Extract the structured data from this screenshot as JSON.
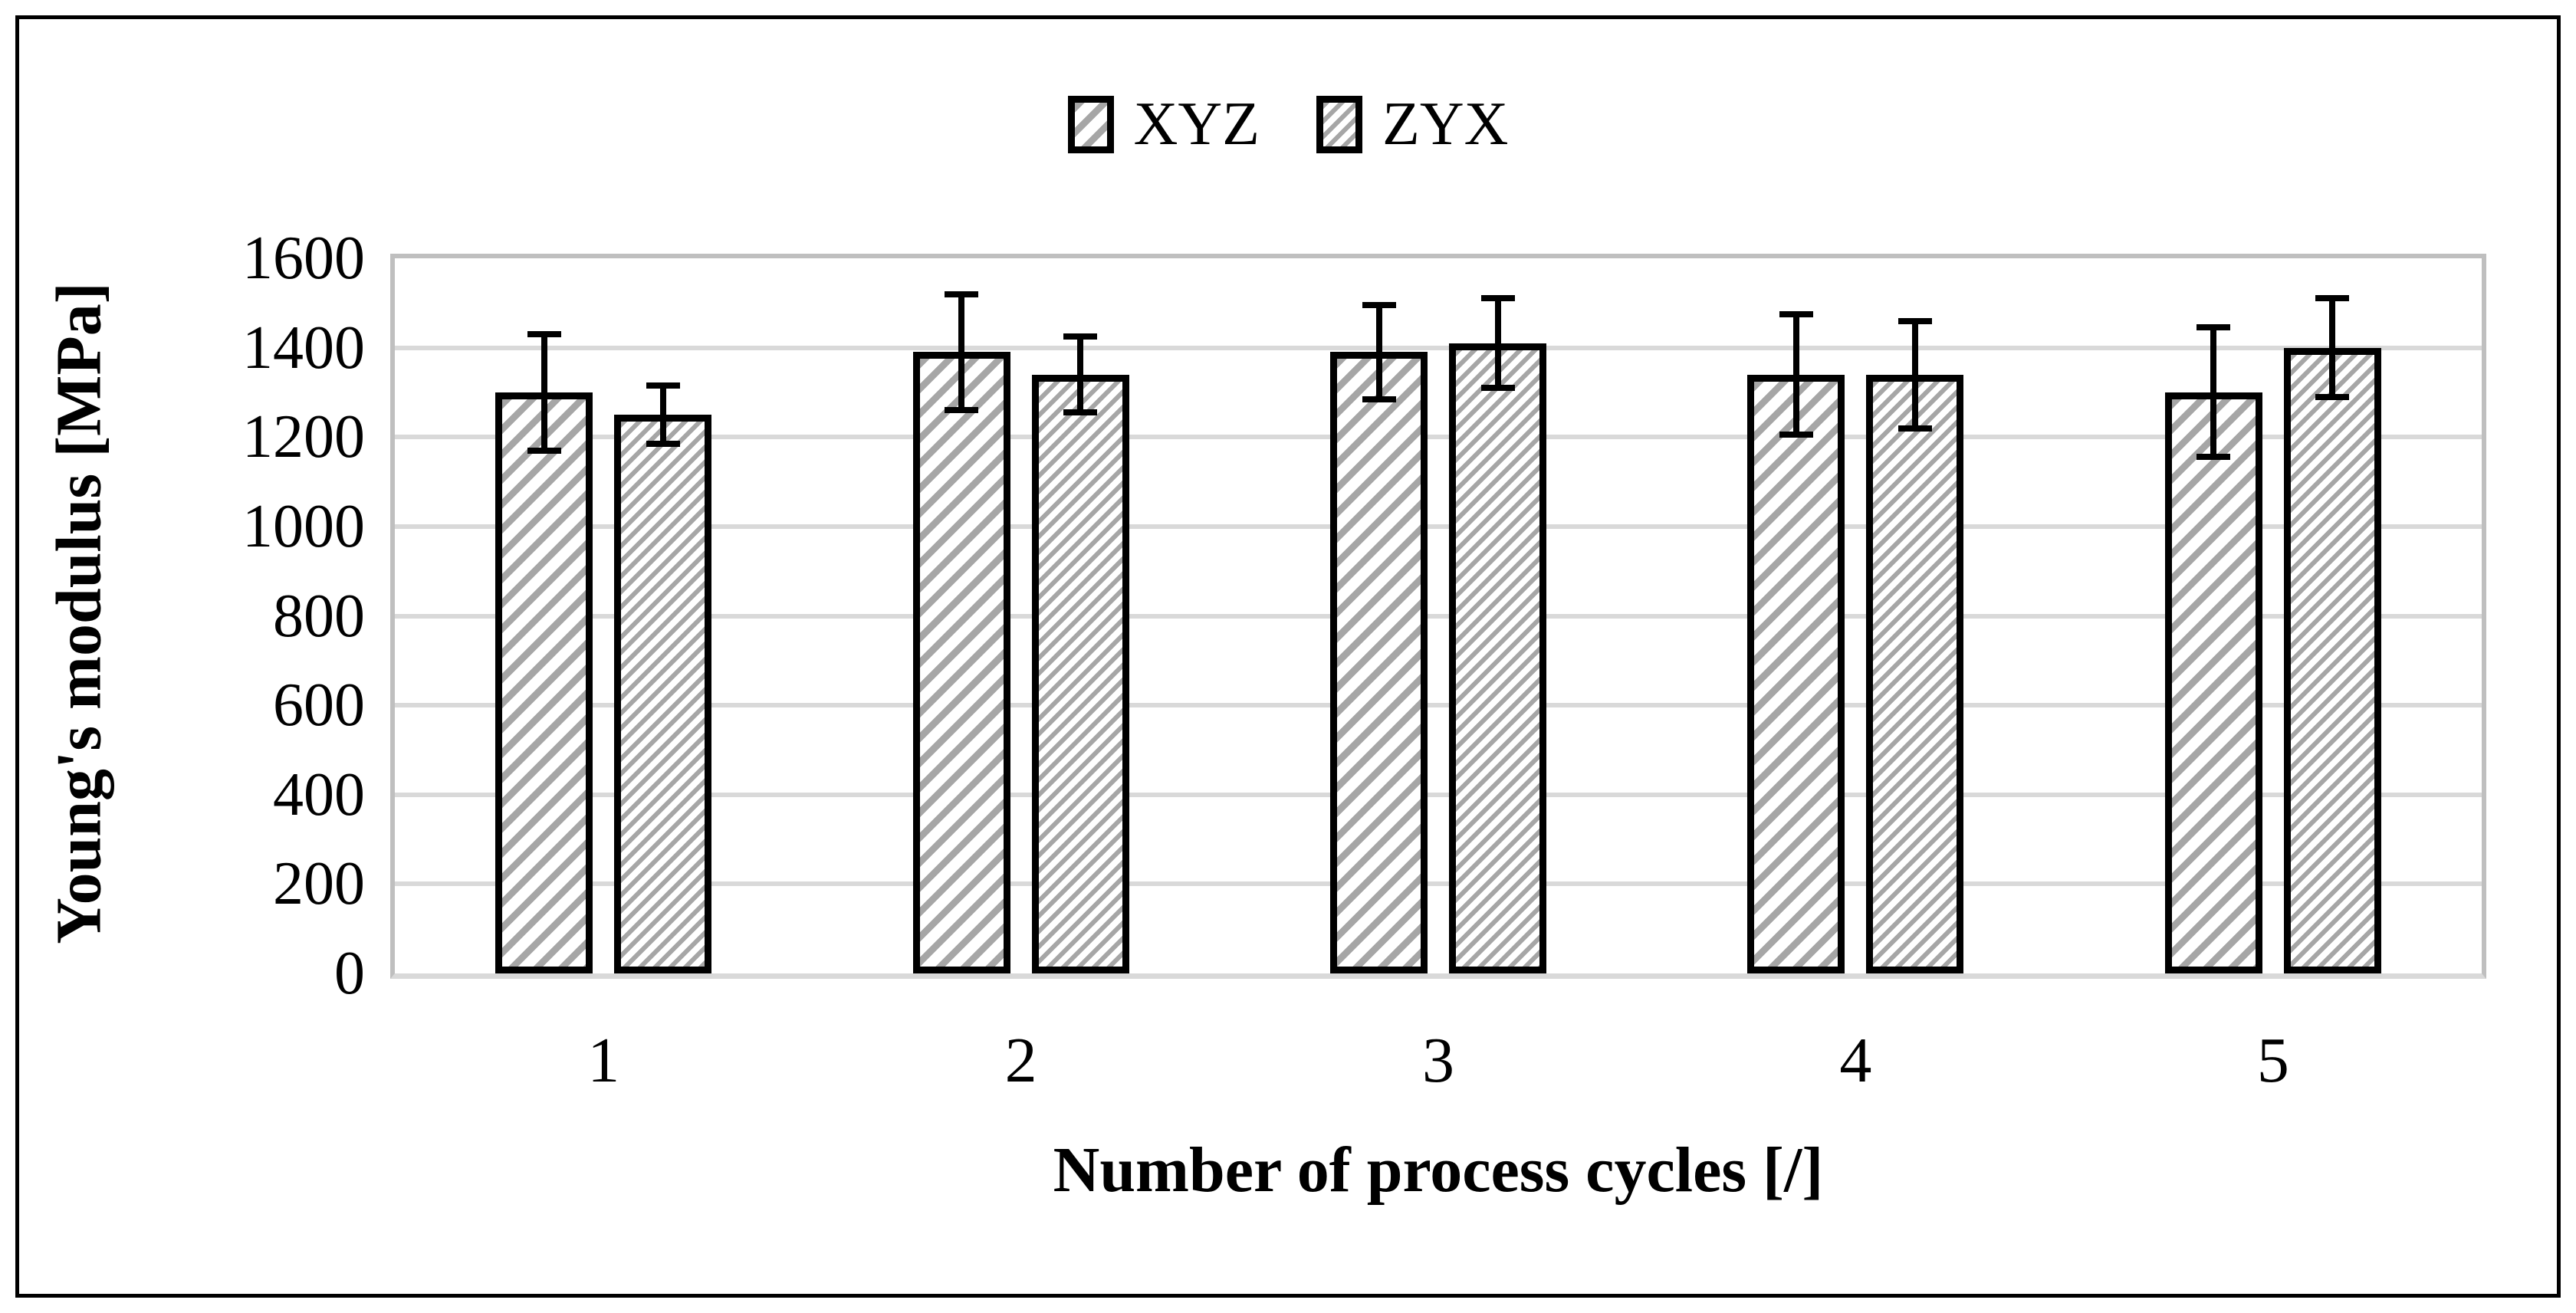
{
  "chart_data": {
    "type": "bar",
    "title": "",
    "categories": [
      "1",
      "2",
      "3",
      "4",
      "5"
    ],
    "series": [
      {
        "name": "XYZ",
        "values": [
          1300,
          1390,
          1390,
          1340,
          1300
        ],
        "errors": [
          130,
          130,
          105,
          135,
          145
        ],
        "hatch": "wide-diagonal"
      },
      {
        "name": "ZYX",
        "values": [
          1250,
          1340,
          1410,
          1340,
          1400
        ],
        "errors": [
          65,
          85,
          100,
          120,
          110
        ],
        "hatch": "fine-diagonal"
      }
    ],
    "xlabel": "Number of process cycles [/]",
    "ylabel": "Young's modulus [MPa]",
    "ylim": [
      0,
      1600
    ],
    "yticks": [
      0,
      200,
      400,
      600,
      800,
      1000,
      1200,
      1400,
      1600
    ],
    "grid": "horizontal-gridlines",
    "legend_position": "top-center",
    "error_bars": "symmetric-with-caps",
    "colors": {
      "hatch": "#A6A6A6",
      "bar_border": "#000000",
      "gridline": "#D9D9D9",
      "plot_frame": "#BFBFBF",
      "text": "#000000",
      "background": "#FFFFFF",
      "figure_border": "#000000"
    }
  }
}
